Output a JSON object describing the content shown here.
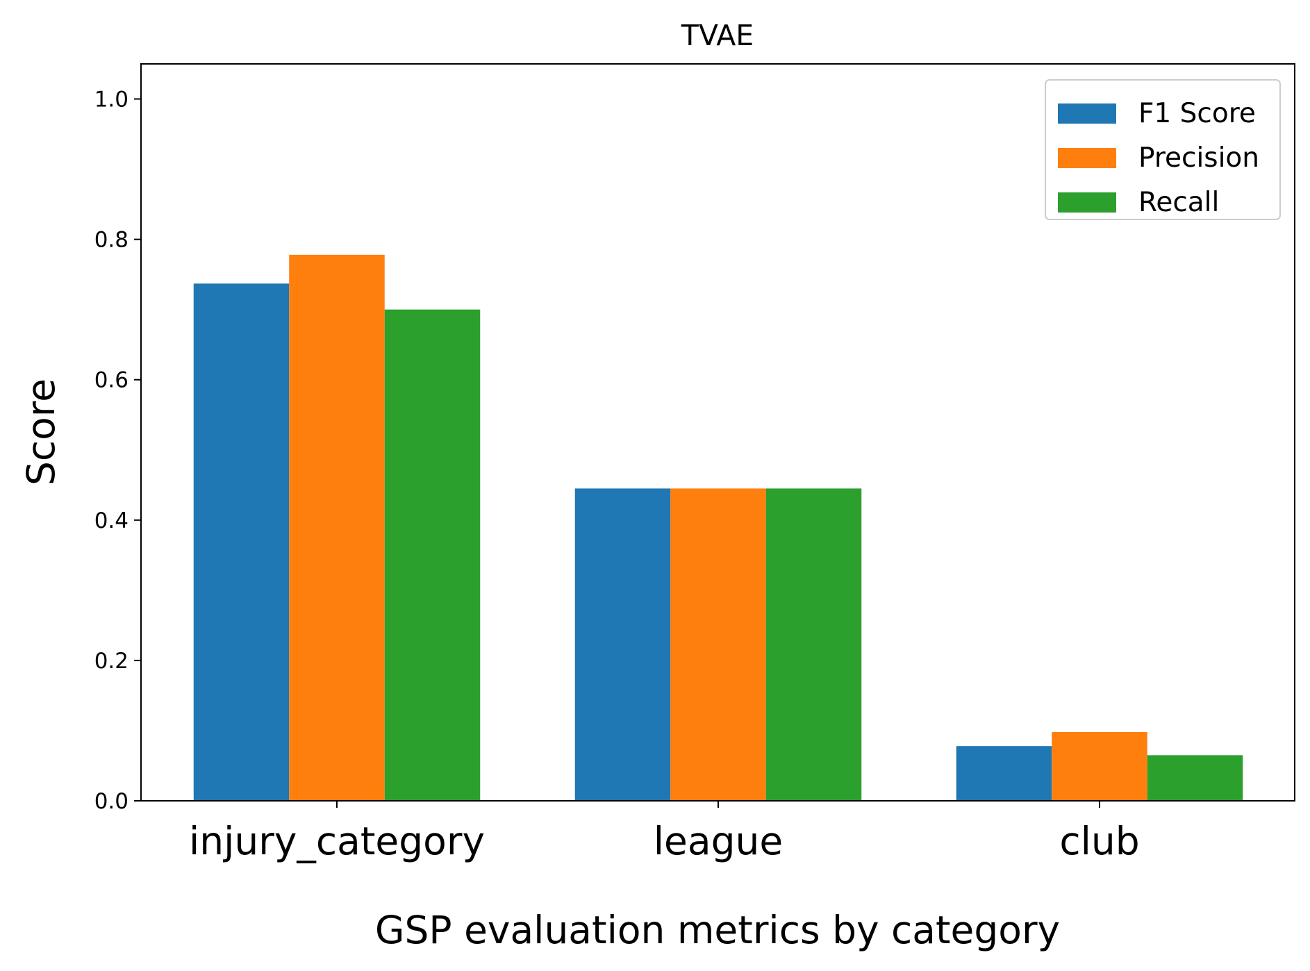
{
  "chart_data": {
    "type": "bar",
    "title": "TVAE",
    "xlabel": "GSP evaluation metrics by category",
    "ylabel": "Score",
    "categories": [
      "injury_category",
      "league",
      "club"
    ],
    "series": [
      {
        "name": "F1 Score",
        "color": "#1f77b4",
        "values": [
          0.737,
          0.445,
          0.078
        ]
      },
      {
        "name": "Precision",
        "color": "#ff7f0e",
        "values": [
          0.778,
          0.445,
          0.098
        ]
      },
      {
        "name": "Recall",
        "color": "#2ca02c",
        "values": [
          0.7,
          0.445,
          0.065
        ]
      }
    ],
    "ylim": [
      0,
      1.05
    ],
    "yticks": [
      0.0,
      0.2,
      0.4,
      0.6,
      0.8,
      1.0
    ],
    "ytick_labels": [
      "0.0",
      "0.2",
      "0.4",
      "0.6",
      "0.8",
      "1.0"
    ],
    "grid": false,
    "legend_position": "top-right"
  }
}
